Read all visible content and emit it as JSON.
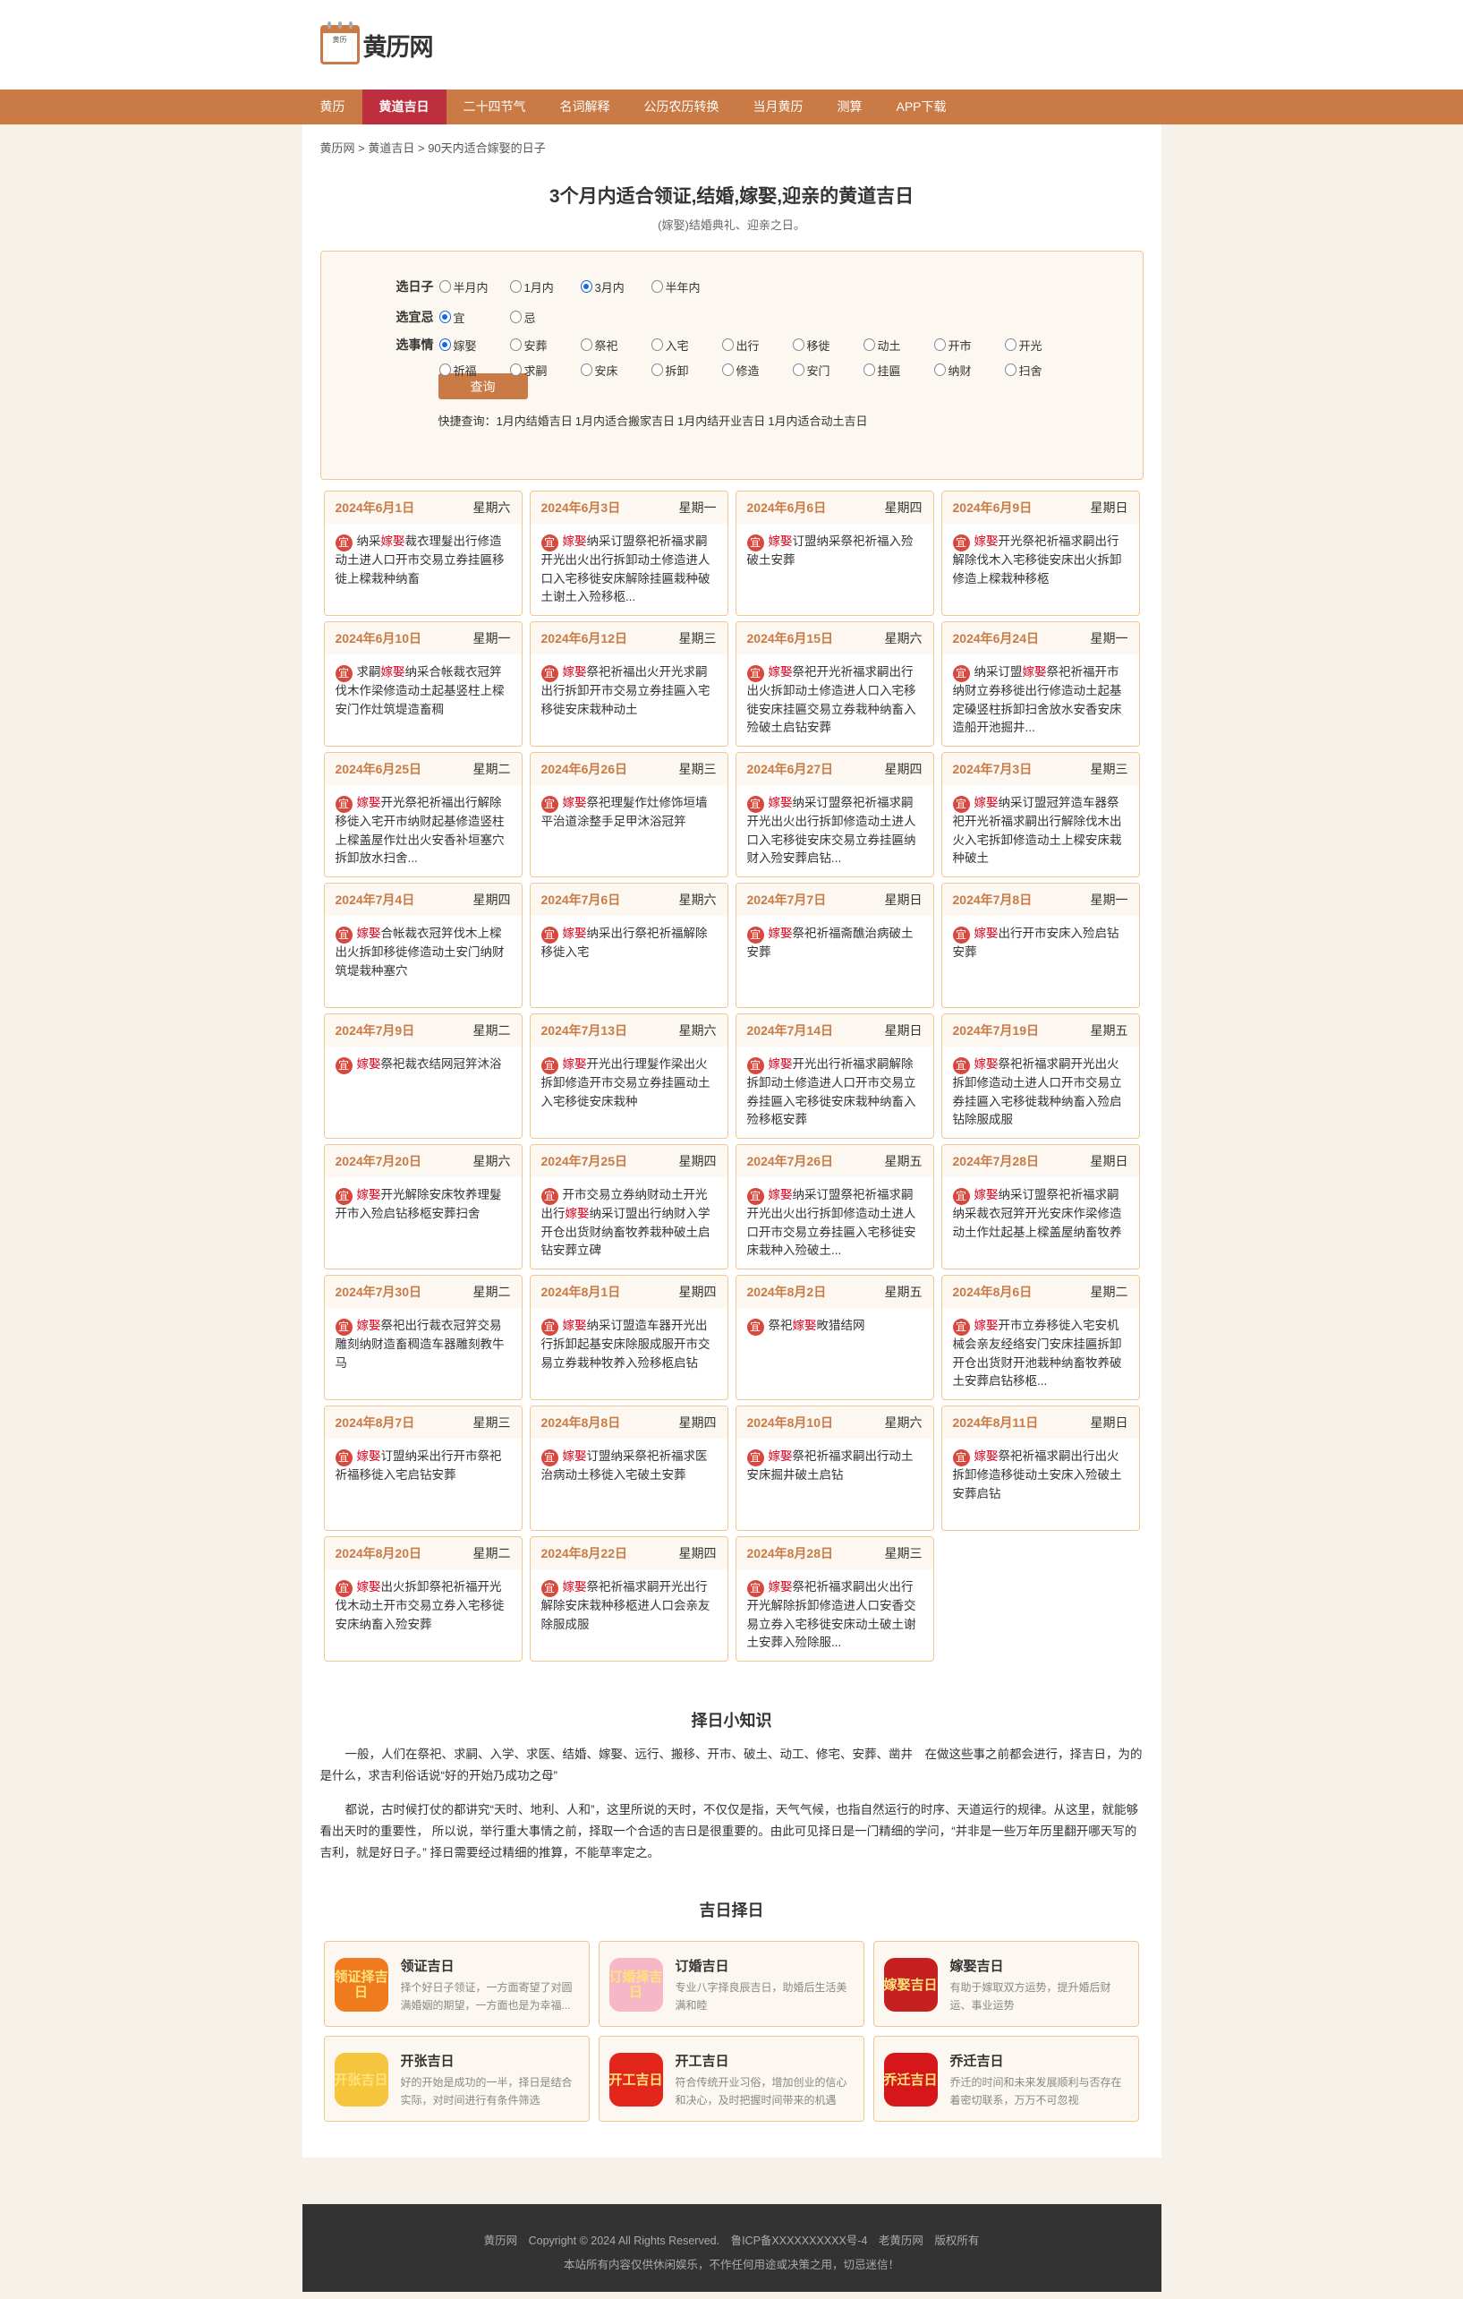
{
  "site": {
    "name": "黄历网",
    "logo_text": "黄历"
  },
  "nav": [
    {
      "label": "黄历"
    },
    {
      "label": "黄道吉日",
      "active": true
    },
    {
      "label": "二十四节气"
    },
    {
      "label": "名词解释"
    },
    {
      "label": "公历农历转换"
    },
    {
      "label": "当月黄历"
    },
    {
      "label": "测算"
    },
    {
      "label": "APP下载"
    }
  ],
  "breadcrumb": [
    "黄历网",
    "黄道吉日",
    "90天内适合嫁娶的日子"
  ],
  "breadcrumb_sep": " > ",
  "page": {
    "title": "3个月内适合领证,结婚,嫁娶,迎亲的黄道吉日",
    "subtitle": "(嫁娶)结婚典礼、迎亲之日。"
  },
  "form": {
    "rows": [
      {
        "label": "选日子",
        "options": [
          {
            "t": "半月内"
          },
          {
            "t": "1月内"
          },
          {
            "t": "3月内",
            "on": true
          },
          {
            "t": "半年内"
          }
        ]
      },
      {
        "label": "选宜忌",
        "options": [
          {
            "t": "宜",
            "on": true
          },
          {
            "t": "忌"
          }
        ]
      },
      {
        "label": "选事情",
        "options": [
          {
            "t": "嫁娶",
            "on": true
          },
          {
            "t": "安葬"
          },
          {
            "t": "祭祀"
          },
          {
            "t": "入宅"
          },
          {
            "t": "出行"
          },
          {
            "t": "移徙"
          },
          {
            "t": "动土"
          },
          {
            "t": "开市"
          },
          {
            "t": "开光"
          },
          {
            "t": "祈福"
          },
          {
            "t": "求嗣"
          },
          {
            "t": "安床"
          },
          {
            "t": "拆卸"
          },
          {
            "t": "修造"
          },
          {
            "t": "安门"
          },
          {
            "t": "挂匾"
          },
          {
            "t": "纳财"
          },
          {
            "t": "扫舍"
          }
        ]
      }
    ],
    "submit": "查询",
    "quick_label": "快捷查询：",
    "quick_links": [
      "1月内结婚吉日",
      "1月内适合搬家吉日",
      "1月内结开业吉日",
      "1月内适合动土吉日"
    ]
  },
  "yi_badge": "宜",
  "highlight": "嫁娶",
  "colors": {
    "accent": "#c97a45",
    "active_nav": "#bd2f3e",
    "highlight": "#e0001b",
    "border": "#f3c690"
  },
  "days": [
    {
      "date": "2024年6月1日",
      "week": "星期六",
      "text": "纳采嫁娶裁衣理髮出行修造动土进人口开市交易立券挂匾移徙上樑栽种纳畜"
    },
    {
      "date": "2024年6月3日",
      "week": "星期一",
      "text": "嫁娶纳采订盟祭祀祈福求嗣开光出火出行拆卸动土修造进人口入宅移徙安床解除挂匾栽种破土谢土入殓移柩..."
    },
    {
      "date": "2024年6月6日",
      "week": "星期四",
      "text": "嫁娶订盟纳采祭祀祈福入殓破土安葬"
    },
    {
      "date": "2024年6月9日",
      "week": "星期日",
      "text": "嫁娶开光祭祀祈福求嗣出行解除伐木入宅移徙安床出火拆卸修造上樑栽种移柩"
    },
    {
      "date": "2024年6月10日",
      "week": "星期一",
      "text": "求嗣嫁娶纳采合帐裁衣冠笄伐木作梁修造动土起基竖柱上樑安门作灶筑堤造畜稠"
    },
    {
      "date": "2024年6月12日",
      "week": "星期三",
      "text": "嫁娶祭祀祈福出火开光求嗣出行拆卸开市交易立券挂匾入宅移徙安床栽种动土"
    },
    {
      "date": "2024年6月15日",
      "week": "星期六",
      "text": "嫁娶祭祀开光祈福求嗣出行出火拆卸动土修造进人口入宅移徙安床挂匾交易立券栽种纳畜入殓破土启钻安葬"
    },
    {
      "date": "2024年6月24日",
      "week": "星期一",
      "text": "纳采订盟嫁娶祭祀祈福开市纳财立券移徙出行修造动土起基定磉竖柱拆卸扫舍放水安香安床造船开池掘井..."
    },
    {
      "date": "2024年6月25日",
      "week": "星期二",
      "text": "嫁娶开光祭祀祈福出行解除移徙入宅开市纳财起基修造竖柱上樑盖屋作灶出火安香补垣塞穴拆卸放水扫舍..."
    },
    {
      "date": "2024年6月26日",
      "week": "星期三",
      "text": "嫁娶祭祀理髮作灶修饰垣墙平治道涂整手足甲沐浴冠笄"
    },
    {
      "date": "2024年6月27日",
      "week": "星期四",
      "text": "嫁娶纳采订盟祭祀祈福求嗣开光出火出行拆卸修造动土进人口入宅移徙安床交易立券挂匾纳财入殓安葬启钻..."
    },
    {
      "date": "2024年7月3日",
      "week": "星期三",
      "text": "嫁娶纳采订盟冠笄造车器祭祀开光祈福求嗣出行解除伐木出火入宅拆卸修造动土上樑安床栽种破土"
    },
    {
      "date": "2024年7月4日",
      "week": "星期四",
      "text": "嫁娶合帐裁衣冠笄伐木上樑出火拆卸移徙修造动土安门纳财筑堤栽种塞穴"
    },
    {
      "date": "2024年7月6日",
      "week": "星期六",
      "text": "嫁娶纳采出行祭祀祈福解除移徙入宅"
    },
    {
      "date": "2024年7月7日",
      "week": "星期日",
      "text": "嫁娶祭祀祈福斋醮治病破土安葬"
    },
    {
      "date": "2024年7月8日",
      "week": "星期一",
      "text": "嫁娶出行开市安床入殓启钻安葬"
    },
    {
      "date": "2024年7月9日",
      "week": "星期二",
      "text": "嫁娶祭祀裁衣结网冠笄沐浴"
    },
    {
      "date": "2024年7月13日",
      "week": "星期六",
      "text": "嫁娶开光出行理髮作梁出火拆卸修造开市交易立券挂匾动土入宅移徙安床栽种"
    },
    {
      "date": "2024年7月14日",
      "week": "星期日",
      "text": "嫁娶开光出行祈福求嗣解除拆卸动土修造进人口开市交易立券挂匾入宅移徙安床栽种纳畜入殓移柩安葬"
    },
    {
      "date": "2024年7月19日",
      "week": "星期五",
      "text": "嫁娶祭祀祈福求嗣开光出火拆卸修造动土进人口开市交易立券挂匾入宅移徙栽种纳畜入殓启钻除服成服"
    },
    {
      "date": "2024年7月20日",
      "week": "星期六",
      "text": "嫁娶开光解除安床牧养理髮开市入殓启钻移柩安葬扫舍"
    },
    {
      "date": "2024年7月25日",
      "week": "星期四",
      "text": "开市交易立券纳财动土开光出行嫁娶纳采订盟出行纳财入学开仓出货财纳畜牧养栽种破土启钻安葬立碑"
    },
    {
      "date": "2024年7月26日",
      "week": "星期五",
      "text": "嫁娶纳采订盟祭祀祈福求嗣开光出火出行拆卸修造动土进人口开市交易立券挂匾入宅移徙安床栽种入殓破土..."
    },
    {
      "date": "2024年7月28日",
      "week": "星期日",
      "text": "嫁娶纳采订盟祭祀祈福求嗣纳采裁衣冠笄开光安床作梁修造动土作灶起基上樑盖屋纳畜牧养"
    },
    {
      "date": "2024年7月30日",
      "week": "星期二",
      "text": "嫁娶祭祀出行裁衣冠笄交易雕刻纳财造畜稠造车器雕刻教牛马"
    },
    {
      "date": "2024年8月1日",
      "week": "星期四",
      "text": "嫁娶纳采订盟造车器开光出行拆卸起基安床除服成服开市交易立券栽种牧养入殓移柩启钻"
    },
    {
      "date": "2024年8月2日",
      "week": "星期五",
      "text": "祭祀嫁娶畋猎结网"
    },
    {
      "date": "2024年8月6日",
      "week": "星期二",
      "text": "嫁娶开市立券移徙入宅安机械会亲友经络安门安床挂匾拆卸开仓出货财开池栽种纳畜牧养破土安葬启钻移柩..."
    },
    {
      "date": "2024年8月7日",
      "week": "星期三",
      "text": "嫁娶订盟纳采出行开市祭祀祈福移徙入宅启钻安葬"
    },
    {
      "date": "2024年8月8日",
      "week": "星期四",
      "text": "嫁娶订盟纳采祭祀祈福求医治病动土移徙入宅破土安葬"
    },
    {
      "date": "2024年8月10日",
      "week": "星期六",
      "text": "嫁娶祭祀祈福求嗣出行动土安床掘井破土启钻"
    },
    {
      "date": "2024年8月11日",
      "week": "星期日",
      "text": "嫁娶祭祀祈福求嗣出行出火拆卸修造移徙动土安床入殓破土安葬启钻"
    },
    {
      "date": "2024年8月20日",
      "week": "星期二",
      "text": "嫁娶出火拆卸祭祀祈福开光伐木动土开市交易立券入宅移徙安床纳畜入殓安葬"
    },
    {
      "date": "2024年8月22日",
      "week": "星期四",
      "text": "嫁娶祭祀祈福求嗣开光出行解除安床栽种移柩进人口会亲友除服成服"
    },
    {
      "date": "2024年8月28日",
      "week": "星期三",
      "text": "嫁娶祭祀祈福求嗣出火出行开光解除拆卸修造进人口安香交易立券入宅移徙安床动土破土谢土安葬入殓除服..."
    }
  ],
  "knowledge": {
    "title": "择日小知识",
    "paragraphs": [
      "一般，人们在祭祀、求嗣、入学、求医、结婚、嫁娶、远行、搬移、开市、破土、动工、修宅、安葬、凿井　在做这些事之前都会进行，择吉日，为的是什么，求吉利俗话说“好的开始乃成功之母”",
      "都说，古时候打仗的都讲究“天时、地利、人和”，这里所说的天时，不仅仅是指，天气气候，也指自然运行的时序、天道运行的规律。从这里，就能够看出天时的重要性， 所以说，举行重大事情之前，择取一个合适的吉日是很重要的。由此可见择日是一门精细的学问，“并非是一些万年历里翻开哪天写的吉利，就是好日子。” 择日需要经过精细的推算，不能草率定之。"
    ]
  },
  "apps": {
    "title": "吉日择日",
    "items": [
      {
        "title": "领证吉日",
        "desc": "择个好日子领证，一方面寄望了对圆满婚姻的期望，一方面也是为幸福...",
        "icon": "marriage-certificate-icon",
        "icon_text": "领证择吉日",
        "color": "#f07a1e"
      },
      {
        "title": "订婚吉日",
        "desc": "专业八字择良辰吉日，助婚后生活美满和睦",
        "icon": "engagement-couple-icon",
        "icon_text": "订婚择吉日",
        "color": "#f6b7c8"
      },
      {
        "title": "嫁娶吉日",
        "desc": "有助于嫁取双方运势，提升婚后财运、事业运势",
        "icon": "wedding-couple-icon",
        "icon_text": "嫁娶吉日",
        "color": "#c5201f"
      },
      {
        "title": "开张吉日",
        "desc": "好的开始是成功的一半，择日是结合实际，对时间进行有条件筛选",
        "icon": "drum-icon",
        "icon_text": "开张吉日",
        "color": "#f5c53d"
      },
      {
        "title": "开工吉日",
        "desc": "符合传统开业习俗，增加创业的信心和决心，及时把握时间带来的机遇",
        "icon": "dragon-icon",
        "icon_text": "开工吉日",
        "color": "#e2261c"
      },
      {
        "title": "乔迁吉日",
        "desc": "乔迁的时间和未来发展顺利与否存在着密切联系，万万不可忽视",
        "icon": "new-home-icon",
        "icon_text": "乔迁吉日",
        "color": "#d5171c"
      }
    ]
  },
  "footer": {
    "line1": "黄历网　Copyright © 2024 All Rights Reserved.　鲁ICP备XXXXXXXXXX号-4　老黄历网　版权所有",
    "line2": "本站所有内容仅供休闲娱乐，不作任何用途或决策之用，切忌迷信！"
  }
}
